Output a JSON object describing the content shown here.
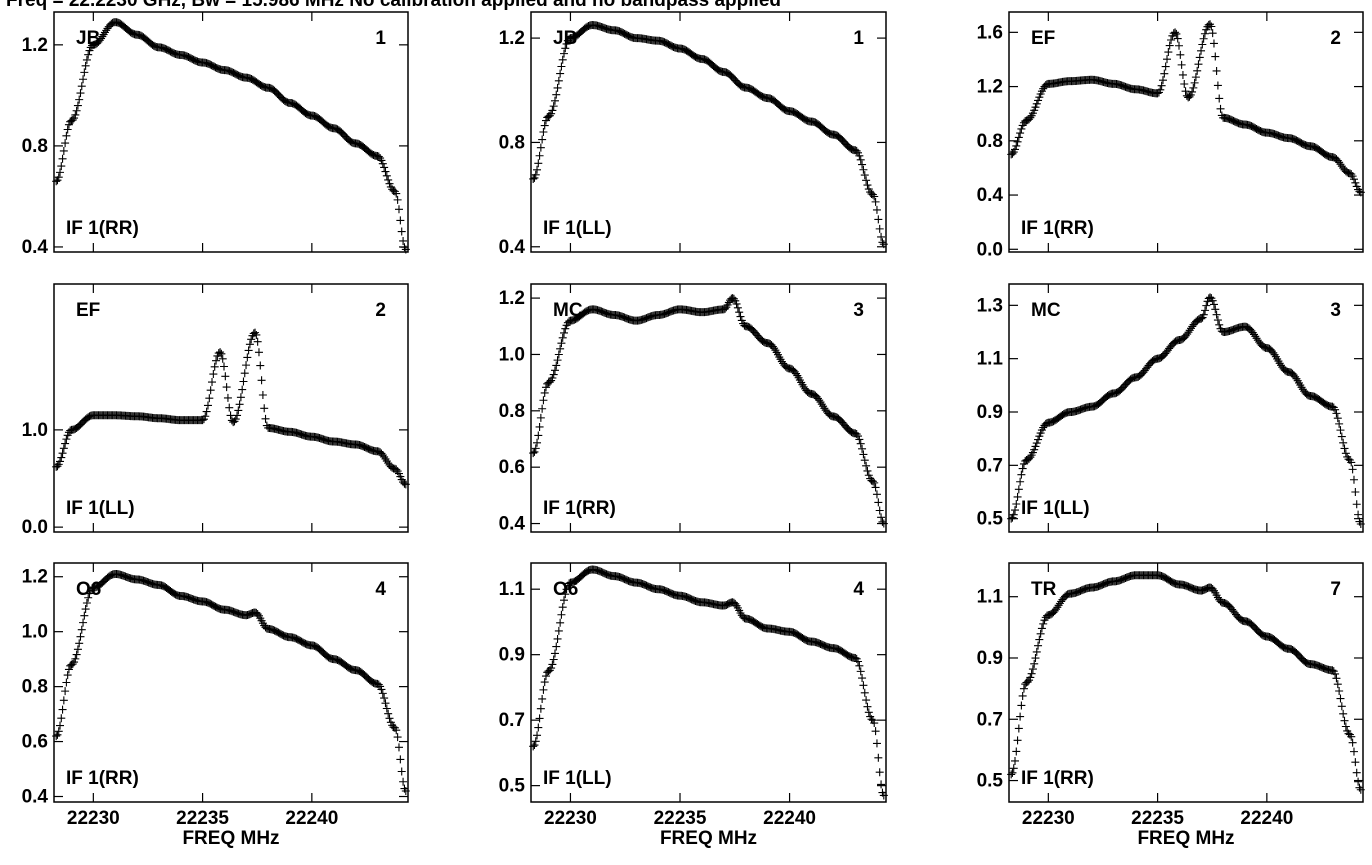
{
  "title": "Freq = 22.2230 GHz, Bw = 15.986 MHz  No calibration applied and no bandpass applied",
  "chart_data": [
    {
      "type": "scatter",
      "antenna": "JB",
      "ant_num": "1",
      "pol": "IF 1(RR)",
      "xlabel": "FREQ MHz",
      "xlim": [
        22228.2,
        22244.4
      ],
      "ylim": [
        0.38,
        1.33
      ],
      "xticks": [
        22230,
        22235,
        22240
      ],
      "yticks": [
        0.4,
        0.8,
        1.2
      ],
      "ytick_labels": [
        "0.4",
        "0.8",
        "1.2"
      ],
      "x": [
        22228.3,
        22229,
        22230,
        22231,
        22232,
        22233,
        22234,
        22235,
        22236,
        22237,
        22238,
        22239,
        22240,
        22241,
        22242,
        22243,
        22243.8,
        22244.3
      ],
      "y": [
        0.66,
        0.9,
        1.2,
        1.29,
        1.24,
        1.19,
        1.16,
        1.13,
        1.1,
        1.07,
        1.03,
        0.97,
        0.92,
        0.87,
        0.81,
        0.76,
        0.62,
        0.39
      ]
    },
    {
      "type": "scatter",
      "antenna": "JB",
      "ant_num": "1",
      "pol": "IF 1(LL)",
      "xlabel": "FREQ MHz",
      "xlim": [
        22228.2,
        22244.4
      ],
      "ylim": [
        0.38,
        1.3
      ],
      "xticks": [
        22230,
        22235,
        22240
      ],
      "yticks": [
        0.4,
        0.8,
        1.2
      ],
      "ytick_labels": [
        "0.4",
        "0.8",
        "1.2"
      ],
      "x": [
        22228.3,
        22229,
        22230,
        22231,
        22232,
        22233,
        22234,
        22235,
        22236,
        22237,
        22238,
        22239,
        22240,
        22241,
        22242,
        22243,
        22243.8,
        22244.3
      ],
      "y": [
        0.66,
        0.9,
        1.2,
        1.25,
        1.23,
        1.2,
        1.19,
        1.16,
        1.12,
        1.07,
        1.01,
        0.97,
        0.92,
        0.88,
        0.83,
        0.77,
        0.6,
        0.41
      ]
    },
    {
      "type": "scatter",
      "antenna": "EF",
      "ant_num": "2",
      "pol": "IF 1(RR)",
      "xlabel": "FREQ MHz",
      "xlim": [
        22228.2,
        22244.4
      ],
      "ylim": [
        -0.02,
        1.75
      ],
      "xticks": [
        22230,
        22235,
        22240
      ],
      "yticks": [
        0.0,
        0.4,
        0.8,
        1.2,
        1.6
      ],
      "ytick_labels": [
        "0.0",
        "0.4",
        "0.8",
        "1.2",
        "1.6"
      ],
      "x": [
        22228.3,
        22229,
        22230,
        22231,
        22232,
        22233,
        22234,
        22235,
        22235.8,
        22236.4,
        22237.4,
        22238,
        22239,
        22240,
        22241,
        22242,
        22243,
        22243.8,
        22244.3
      ],
      "y": [
        0.7,
        0.95,
        1.22,
        1.24,
        1.25,
        1.22,
        1.18,
        1.15,
        1.6,
        1.12,
        1.66,
        0.97,
        0.92,
        0.86,
        0.82,
        0.76,
        0.68,
        0.56,
        0.42
      ]
    },
    {
      "type": "scatter",
      "antenna": "EF",
      "ant_num": "2",
      "pol": "IF 1(LL)",
      "xlabel": "FREQ MHz",
      "xlim": [
        22228.2,
        22244.4
      ],
      "ylim": [
        -0.05,
        2.5
      ],
      "xticks": [
        22230,
        22235,
        22240
      ],
      "yticks": [
        0.0,
        1.0
      ],
      "ytick_labels": [
        "0.0",
        "1.0"
      ],
      "x": [
        22228.3,
        22229,
        22230,
        22231,
        22232,
        22233,
        22234,
        22235,
        22235.8,
        22236.4,
        22237.4,
        22238,
        22239,
        22240,
        22241,
        22242,
        22243,
        22243.8,
        22244.3
      ],
      "y": [
        0.62,
        1.0,
        1.15,
        1.15,
        1.14,
        1.12,
        1.1,
        1.1,
        1.8,
        1.08,
        2.0,
        1.02,
        0.98,
        0.93,
        0.88,
        0.85,
        0.78,
        0.6,
        0.44
      ]
    },
    {
      "type": "scatter",
      "antenna": "MC",
      "ant_num": "3",
      "pol": "IF 1(RR)",
      "xlabel": "FREQ MHz",
      "xlim": [
        22228.2,
        22244.4
      ],
      "ylim": [
        0.37,
        1.25
      ],
      "xticks": [
        22230,
        22235,
        22240
      ],
      "yticks": [
        0.4,
        0.6,
        0.8,
        1.0,
        1.2
      ],
      "ytick_labels": [
        "0.4",
        "0.6",
        "0.8",
        "1.0",
        "1.2"
      ],
      "x": [
        22228.3,
        22229,
        22230,
        22231,
        22232,
        22233,
        22234,
        22235,
        22236,
        22237,
        22237.4,
        22238,
        22239,
        22240,
        22241,
        22242,
        22243,
        22243.8,
        22244.3
      ],
      "y": [
        0.65,
        0.9,
        1.12,
        1.16,
        1.14,
        1.12,
        1.14,
        1.16,
        1.15,
        1.16,
        1.2,
        1.1,
        1.04,
        0.95,
        0.86,
        0.78,
        0.72,
        0.55,
        0.4
      ]
    },
    {
      "type": "scatter",
      "antenna": "MC",
      "ant_num": "3",
      "pol": "IF 1(LL)",
      "xlabel": "FREQ MHz",
      "xlim": [
        22228.2,
        22244.4
      ],
      "ylim": [
        0.45,
        1.38
      ],
      "xticks": [
        22230,
        22235,
        22240
      ],
      "yticks": [
        0.5,
        0.7,
        0.9,
        1.1,
        1.3
      ],
      "ytick_labels": [
        "0.5",
        "0.7",
        "0.9",
        "1.1",
        "1.3"
      ],
      "x": [
        22228.3,
        22229,
        22230,
        22231,
        22232,
        22233,
        22234,
        22235,
        22236,
        22237,
        22237.4,
        22238,
        22239,
        22240,
        22241,
        22242,
        22243,
        22243.8,
        22244.3
      ],
      "y": [
        0.5,
        0.72,
        0.86,
        0.9,
        0.92,
        0.97,
        1.03,
        1.1,
        1.17,
        1.25,
        1.33,
        1.2,
        1.22,
        1.14,
        1.05,
        0.96,
        0.92,
        0.72,
        0.48
      ]
    },
    {
      "type": "scatter",
      "antenna": "O6",
      "ant_num": "4",
      "pol": "IF 1(RR)",
      "xlabel": "FREQ MHz",
      "xlim": [
        22228.2,
        22244.4
      ],
      "ylim": [
        0.38,
        1.25
      ],
      "xticks": [
        22230,
        22235,
        22240
      ],
      "yticks": [
        0.4,
        0.6,
        0.8,
        1.0,
        1.2
      ],
      "ytick_labels": [
        "0.4",
        "0.6",
        "0.8",
        "1.0",
        "1.2"
      ],
      "x": [
        22228.3,
        22229,
        22230,
        22231,
        22232,
        22233,
        22234,
        22235,
        22236,
        22237,
        22237.4,
        22238,
        22239,
        22240,
        22241,
        22242,
        22243,
        22243.8,
        22244.3
      ],
      "y": [
        0.62,
        0.88,
        1.16,
        1.21,
        1.19,
        1.17,
        1.13,
        1.11,
        1.08,
        1.06,
        1.07,
        1.01,
        0.98,
        0.95,
        0.9,
        0.86,
        0.81,
        0.65,
        0.42
      ]
    },
    {
      "type": "scatter",
      "antenna": "O6",
      "ant_num": "4",
      "pol": "IF 1(LL)",
      "xlabel": "FREQ MHz",
      "xlim": [
        22228.2,
        22244.4
      ],
      "ylim": [
        0.45,
        1.18
      ],
      "xticks": [
        22230,
        22235,
        22240
      ],
      "yticks": [
        0.5,
        0.7,
        0.9,
        1.1
      ],
      "ytick_labels": [
        "0.5",
        "0.7",
        "0.9",
        "1.1"
      ],
      "x": [
        22228.3,
        22229,
        22230,
        22231,
        22232,
        22233,
        22234,
        22235,
        22236,
        22237,
        22237.4,
        22238,
        22239,
        22240,
        22241,
        22242,
        22243,
        22243.8,
        22244.3
      ],
      "y": [
        0.62,
        0.85,
        1.12,
        1.16,
        1.14,
        1.12,
        1.1,
        1.08,
        1.06,
        1.05,
        1.06,
        1.01,
        0.98,
        0.97,
        0.94,
        0.92,
        0.89,
        0.7,
        0.47
      ]
    },
    {
      "type": "scatter",
      "antenna": "TR",
      "ant_num": "7",
      "pol": "IF 1(RR)",
      "xlabel": "FREQ MHz",
      "xlim": [
        22228.2,
        22244.4
      ],
      "ylim": [
        0.43,
        1.21
      ],
      "xticks": [
        22230,
        22235,
        22240
      ],
      "yticks": [
        0.5,
        0.7,
        0.9,
        1.1
      ],
      "ytick_labels": [
        "0.5",
        "0.7",
        "0.9",
        "1.1"
      ],
      "x": [
        22228.3,
        22229,
        22230,
        22231,
        22232,
        22233,
        22234,
        22235,
        22236,
        22237,
        22237.4,
        22238,
        22239,
        22240,
        22241,
        22242,
        22243,
        22243.8,
        22244.3
      ],
      "y": [
        0.52,
        0.82,
        1.04,
        1.11,
        1.13,
        1.15,
        1.17,
        1.17,
        1.14,
        1.12,
        1.13,
        1.08,
        1.02,
        0.97,
        0.93,
        0.88,
        0.86,
        0.65,
        0.47
      ]
    }
  ]
}
